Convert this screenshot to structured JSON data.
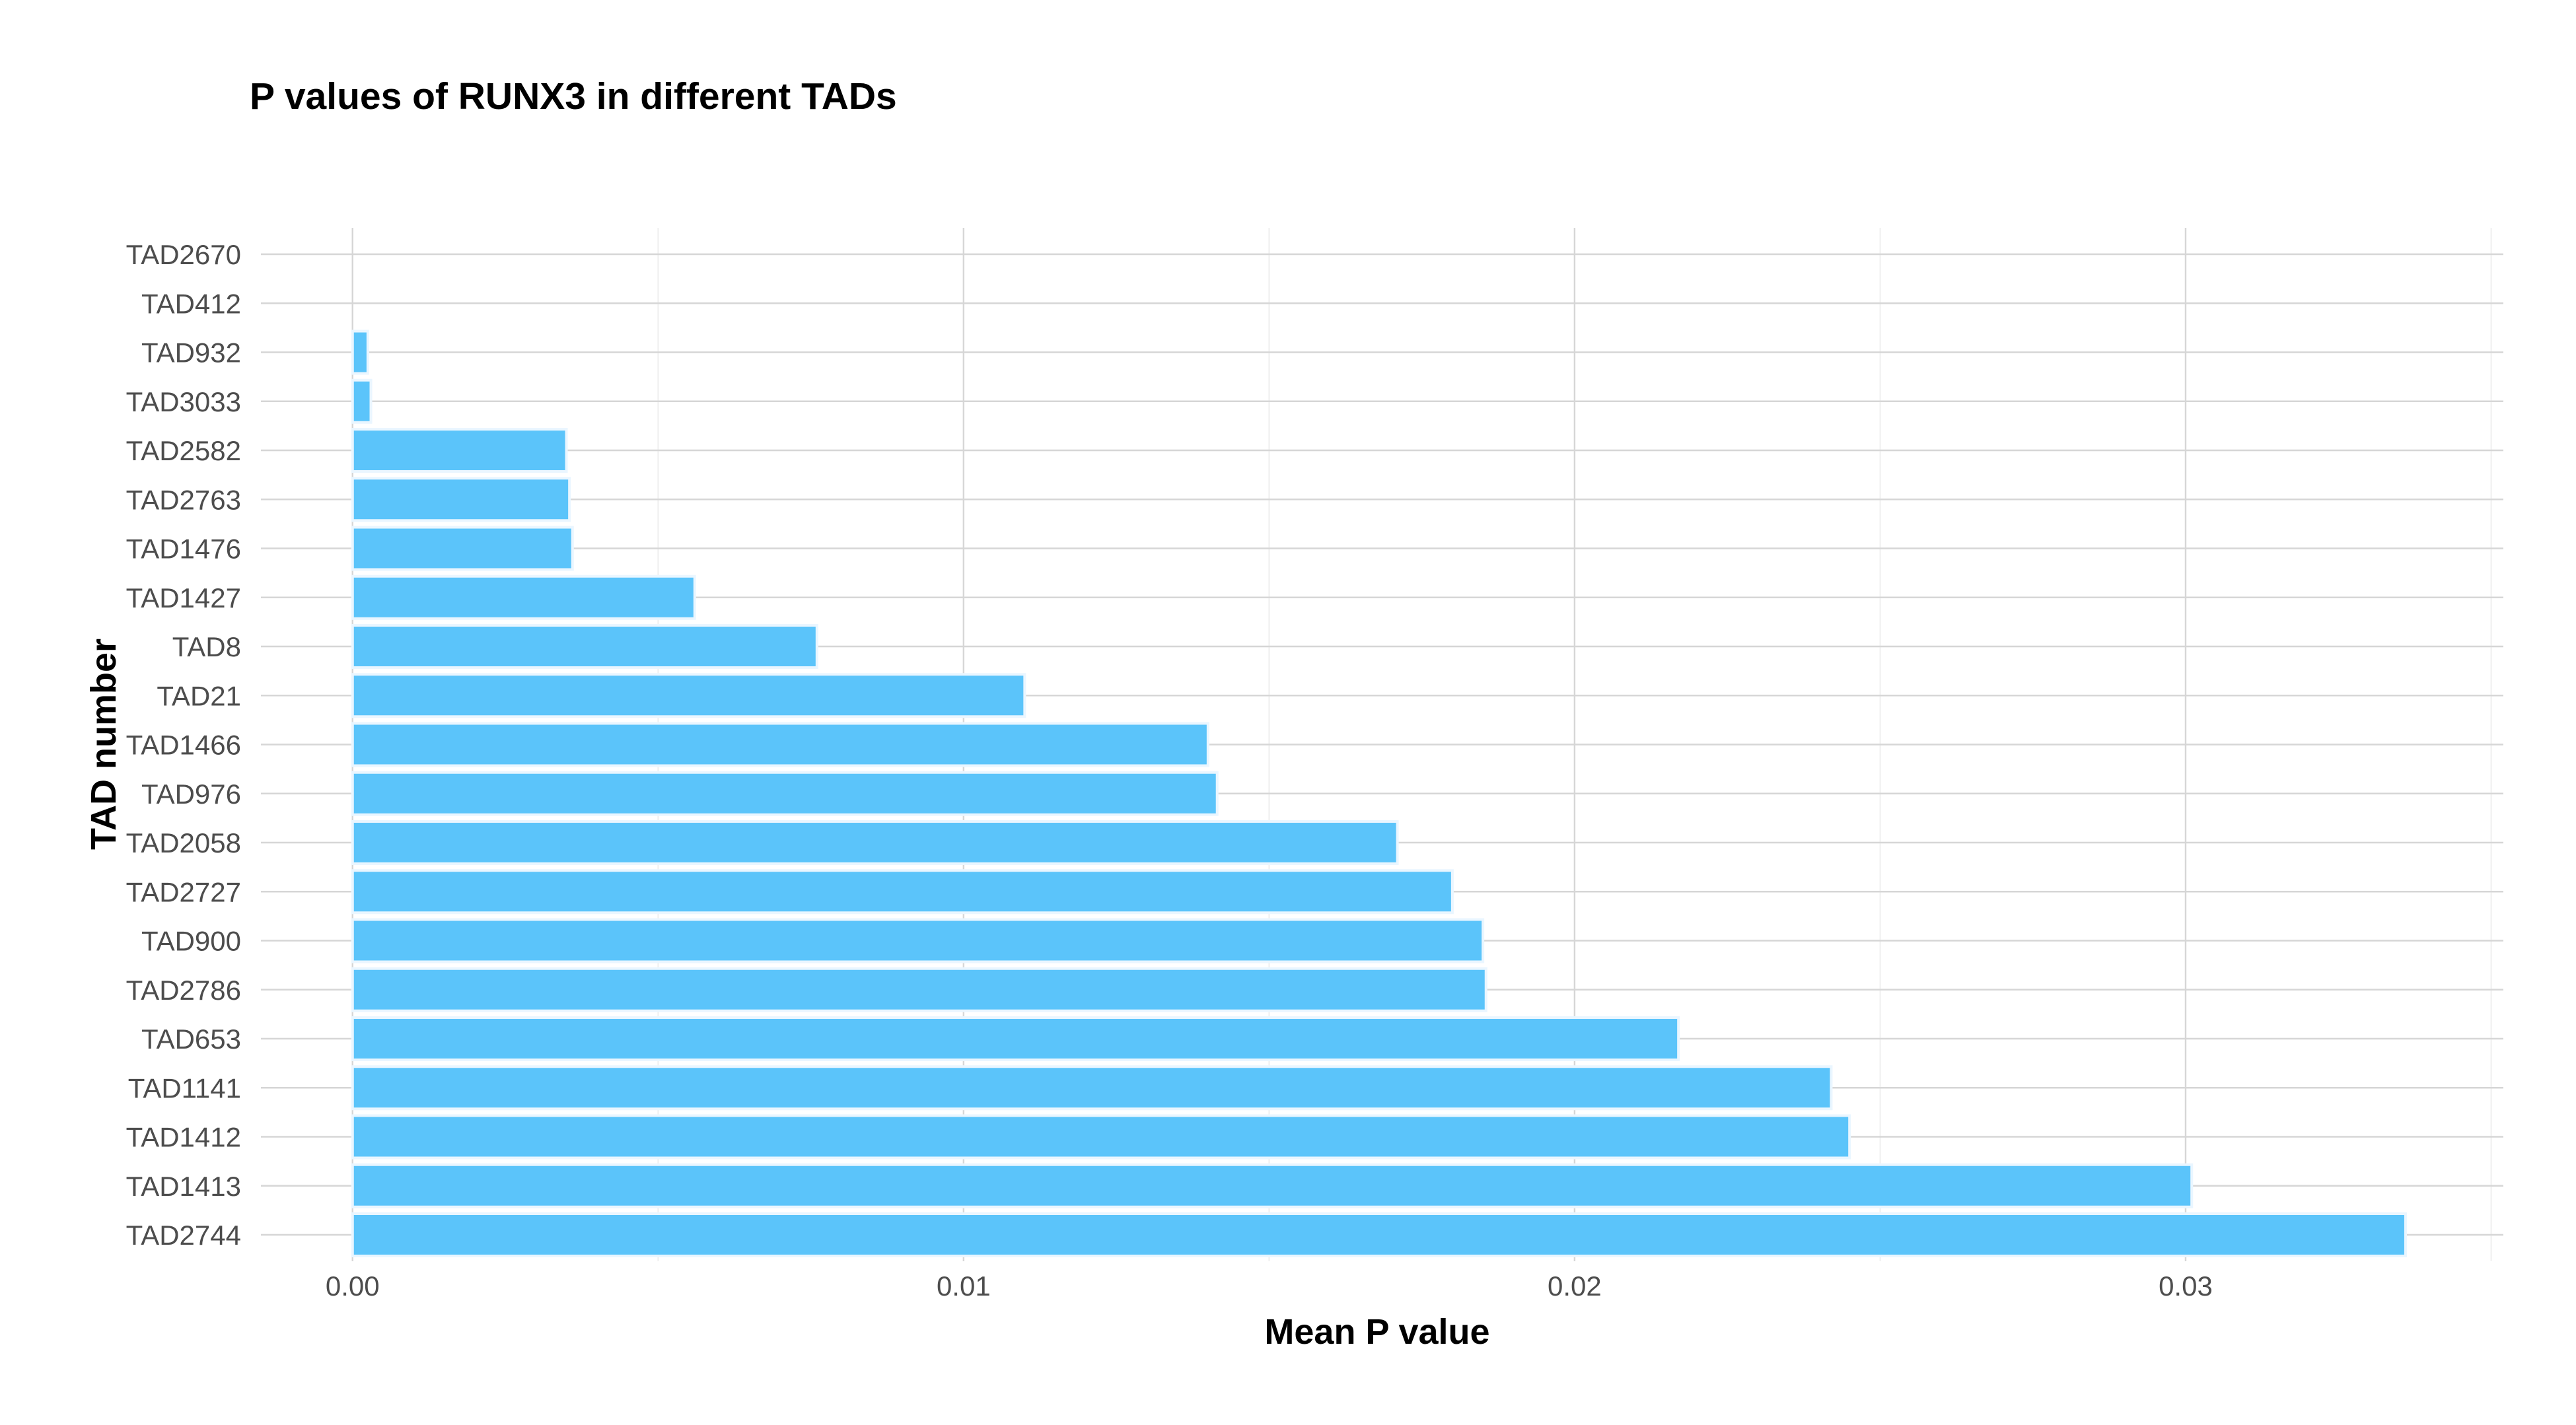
{
  "chart_data": {
    "type": "bar",
    "orientation": "horizontal",
    "title": "P values of RUNX3 in different TADs",
    "xlabel": "Mean P value",
    "ylabel": "TAD number",
    "xlim": [
      -0.0015,
      0.0352
    ],
    "xticks": [
      0.0,
      0.01,
      0.02,
      0.03
    ],
    "xtick_labels": [
      "0.00",
      "0.01",
      "0.02",
      "0.03"
    ],
    "grid": true,
    "legend": "none",
    "bar_color": "#5bc4fa",
    "categories": [
      "TAD2670",
      "TAD412",
      "TAD932",
      "TAD3033",
      "TAD2582",
      "TAD2763",
      "TAD1476",
      "TAD1427",
      "TAD8",
      "TAD21",
      "TAD1466",
      "TAD976",
      "TAD2058",
      "TAD2727",
      "TAD900",
      "TAD2786",
      "TAD653",
      "TAD1141",
      "TAD1412",
      "TAD1413",
      "TAD2744"
    ],
    "values": [
      0.0,
      0.0,
      0.00025,
      0.0003,
      0.0035,
      0.00355,
      0.0036,
      0.0056,
      0.0076,
      0.011,
      0.014,
      0.01415,
      0.0171,
      0.018,
      0.0185,
      0.01855,
      0.0217,
      0.0242,
      0.0245,
      0.0301,
      0.0336
    ]
  }
}
